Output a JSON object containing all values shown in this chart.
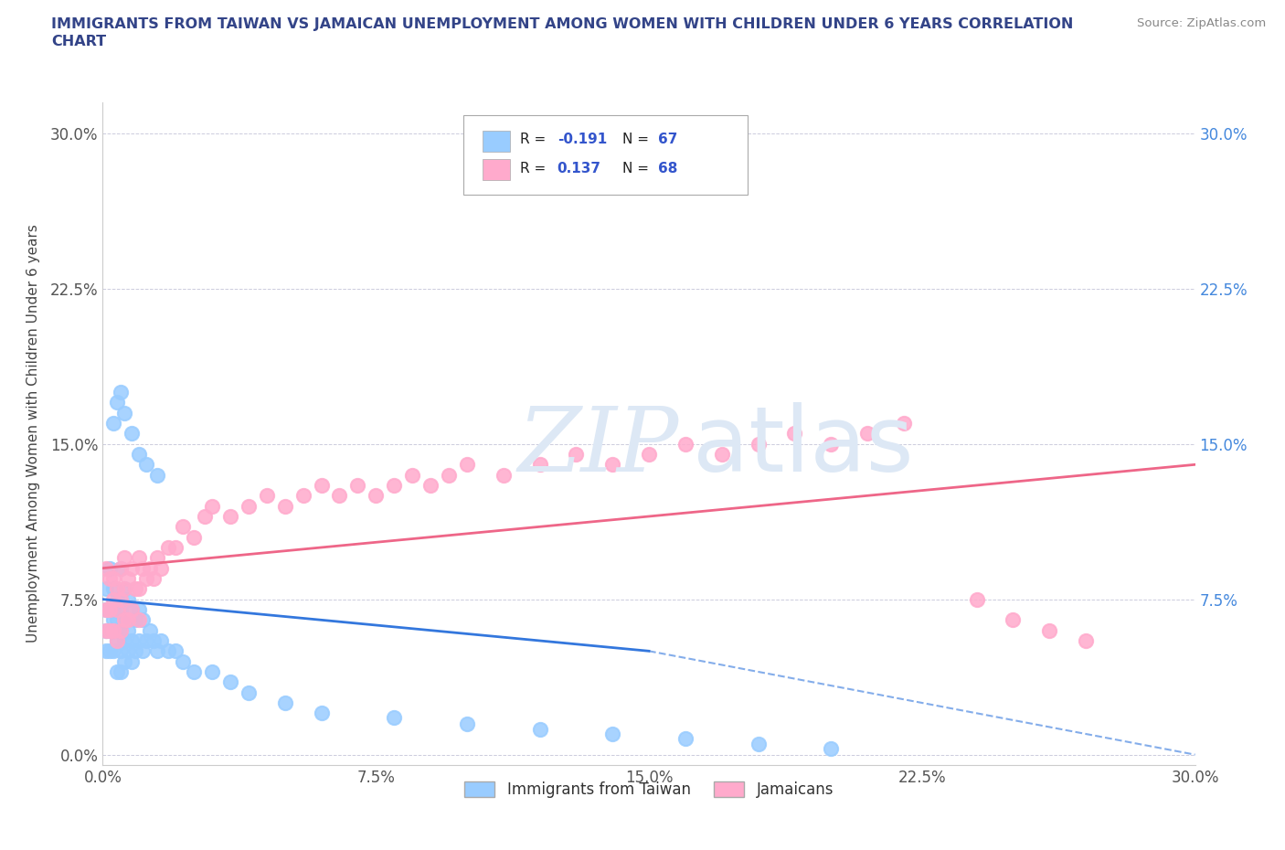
{
  "title": "IMMIGRANTS FROM TAIWAN VS JAMAICAN UNEMPLOYMENT AMONG WOMEN WITH CHILDREN UNDER 6 YEARS CORRELATION\nCHART",
  "source": "Source: ZipAtlas.com",
  "ylabel": "Unemployment Among Women with Children Under 6 years",
  "xlim": [
    0.0,
    0.3
  ],
  "ylim": [
    -0.005,
    0.315
  ],
  "xticks": [
    0.0,
    0.075,
    0.15,
    0.225,
    0.3
  ],
  "xtick_labels": [
    "0.0%",
    "7.5%",
    "15.0%",
    "22.5%",
    "30.0%"
  ],
  "yticks": [
    0.0,
    0.075,
    0.15,
    0.225,
    0.3
  ],
  "ytick_labels": [
    "0.0%",
    "7.5%",
    "15.0%",
    "22.5%",
    "30.0%"
  ],
  "taiwan_color": "#99ccff",
  "jamaica_color": "#ffaacc",
  "taiwan_line_color": "#3377dd",
  "jamaica_line_color": "#ee6688",
  "R_taiwan": -0.191,
  "N_taiwan": 67,
  "R_jamaica": 0.137,
  "N_jamaica": 68,
  "legend_label_taiwan": "Immigrants from Taiwan",
  "legend_label_jamaica": "Jamaicans",
  "taiwan_x": [
    0.001,
    0.001,
    0.001,
    0.001,
    0.002,
    0.002,
    0.002,
    0.002,
    0.003,
    0.003,
    0.003,
    0.003,
    0.003,
    0.004,
    0.004,
    0.004,
    0.004,
    0.005,
    0.005,
    0.005,
    0.005,
    0.005,
    0.006,
    0.006,
    0.006,
    0.006,
    0.007,
    0.007,
    0.007,
    0.008,
    0.008,
    0.008,
    0.009,
    0.009,
    0.01,
    0.01,
    0.011,
    0.011,
    0.012,
    0.013,
    0.014,
    0.015,
    0.016,
    0.018,
    0.02,
    0.022,
    0.025,
    0.03,
    0.035,
    0.04,
    0.05,
    0.06,
    0.08,
    0.1,
    0.12,
    0.14,
    0.16,
    0.18,
    0.2,
    0.003,
    0.004,
    0.005,
    0.006,
    0.008,
    0.01,
    0.012,
    0.015
  ],
  "taiwan_y": [
    0.05,
    0.06,
    0.07,
    0.08,
    0.05,
    0.06,
    0.07,
    0.09,
    0.05,
    0.06,
    0.065,
    0.07,
    0.08,
    0.04,
    0.055,
    0.065,
    0.075,
    0.04,
    0.05,
    0.06,
    0.07,
    0.09,
    0.045,
    0.055,
    0.065,
    0.08,
    0.05,
    0.06,
    0.075,
    0.045,
    0.055,
    0.07,
    0.05,
    0.065,
    0.055,
    0.07,
    0.05,
    0.065,
    0.055,
    0.06,
    0.055,
    0.05,
    0.055,
    0.05,
    0.05,
    0.045,
    0.04,
    0.04,
    0.035,
    0.03,
    0.025,
    0.02,
    0.018,
    0.015,
    0.012,
    0.01,
    0.008,
    0.005,
    0.003,
    0.16,
    0.17,
    0.175,
    0.165,
    0.155,
    0.145,
    0.14,
    0.135
  ],
  "jamaica_x": [
    0.001,
    0.001,
    0.001,
    0.002,
    0.002,
    0.002,
    0.003,
    0.003,
    0.003,
    0.004,
    0.004,
    0.004,
    0.005,
    0.005,
    0.005,
    0.006,
    0.006,
    0.006,
    0.007,
    0.007,
    0.008,
    0.008,
    0.009,
    0.01,
    0.01,
    0.01,
    0.011,
    0.012,
    0.013,
    0.014,
    0.015,
    0.016,
    0.018,
    0.02,
    0.022,
    0.025,
    0.028,
    0.03,
    0.035,
    0.04,
    0.045,
    0.05,
    0.055,
    0.06,
    0.065,
    0.07,
    0.075,
    0.08,
    0.085,
    0.09,
    0.095,
    0.1,
    0.11,
    0.12,
    0.13,
    0.14,
    0.15,
    0.16,
    0.17,
    0.18,
    0.19,
    0.2,
    0.21,
    0.22,
    0.24,
    0.25,
    0.26,
    0.27
  ],
  "jamaica_y": [
    0.06,
    0.07,
    0.09,
    0.06,
    0.07,
    0.085,
    0.06,
    0.075,
    0.085,
    0.055,
    0.07,
    0.08,
    0.06,
    0.075,
    0.09,
    0.065,
    0.08,
    0.095,
    0.065,
    0.085,
    0.07,
    0.09,
    0.08,
    0.065,
    0.08,
    0.095,
    0.09,
    0.085,
    0.09,
    0.085,
    0.095,
    0.09,
    0.1,
    0.1,
    0.11,
    0.105,
    0.115,
    0.12,
    0.115,
    0.12,
    0.125,
    0.12,
    0.125,
    0.13,
    0.125,
    0.13,
    0.125,
    0.13,
    0.135,
    0.13,
    0.135,
    0.14,
    0.135,
    0.14,
    0.145,
    0.14,
    0.145,
    0.15,
    0.145,
    0.15,
    0.155,
    0.15,
    0.155,
    0.16,
    0.075,
    0.065,
    0.06,
    0.055
  ]
}
